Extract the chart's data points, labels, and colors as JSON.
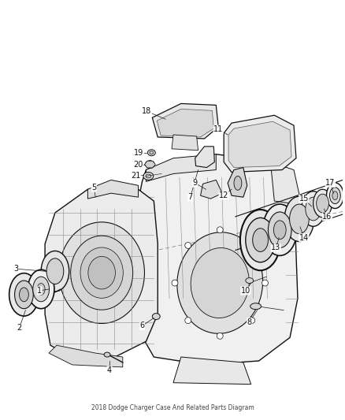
{
  "title": "2018 Dodge Charger Case And Related Parts Diagram",
  "background_color": "#ffffff",
  "fig_width": 4.38,
  "fig_height": 5.33,
  "dpi": 100,
  "label_fontsize": 7.0,
  "label_color": "#111111"
}
